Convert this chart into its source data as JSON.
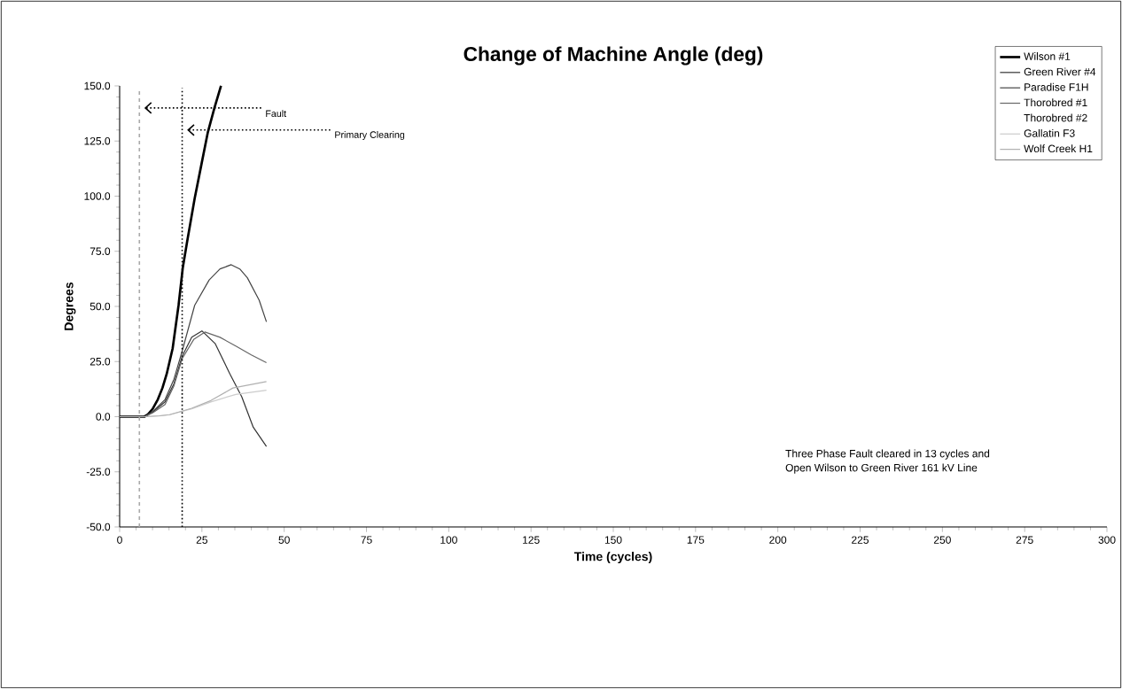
{
  "chart_data": {
    "type": "line",
    "title": "Change of Machine Angle (deg)",
    "xlabel": "Time (cycles)",
    "ylabel": "Degrees",
    "xlim": [
      0,
      300
    ],
    "ylim": [
      -50,
      150
    ],
    "xticks": [
      0,
      25,
      50,
      75,
      100,
      125,
      150,
      175,
      200,
      225,
      250,
      275,
      300
    ],
    "yticks": [
      {
        "value": -50,
        "label": "-50.0"
      },
      {
        "value": -25,
        "label": "-25.0"
      },
      {
        "value": 0,
        "label": "0.0"
      },
      {
        "value": 25,
        "label": "25.0"
      },
      {
        "value": 50,
        "label": "50.0"
      },
      {
        "value": 75,
        "label": "75.0"
      },
      {
        "value": 100,
        "label": "100.0"
      },
      {
        "value": 125,
        "label": "125.0"
      },
      {
        "value": 150,
        "label": "150.0"
      }
    ],
    "grid": false,
    "legend": "top right",
    "marker": "none",
    "line_style": "solid",
    "series": [
      {
        "name": "Wilson #1",
        "color": "#000000",
        "x": [
          0,
          5,
          7.5,
          8.5,
          10,
          11.6,
          13,
          14.3,
          16.1,
          17.9,
          19.2,
          20.5,
          22.8,
          24.8,
          26.8,
          28.8,
          30.8
        ],
        "values": [
          0,
          0,
          0,
          0.9,
          3.5,
          7.8,
          13,
          19.4,
          30.9,
          50.5,
          67.7,
          79.3,
          99,
          114,
          129,
          140,
          150
        ]
      },
      {
        "name": "Green River #4",
        "color": "#333333",
        "x": [
          0,
          5,
          7.6,
          10,
          13.8,
          16.5,
          19,
          21.9,
          25,
          29,
          33.5,
          37.1,
          40.6,
          44.6
        ],
        "values": [
          0,
          0,
          0,
          2,
          6.7,
          15,
          27.4,
          36,
          38.9,
          33.2,
          19.4,
          9,
          -4.8,
          -13.5
        ]
      },
      {
        "name": "Paradise F1H",
        "color": "#444444",
        "x": [
          0,
          5,
          7.6,
          10,
          13.8,
          16.5,
          19,
          22.8,
          27.2,
          30.5,
          33.9,
          36.5,
          38.8,
          42.4,
          44.6
        ],
        "values": [
          0,
          0,
          0,
          2.2,
          7.8,
          17,
          29.7,
          50.5,
          62,
          67,
          68.9,
          67,
          63,
          52.8,
          43
        ]
      },
      {
        "name": "Thorobred #1",
        "color": "#666666",
        "x": [
          0,
          5,
          7.6,
          10,
          13.8,
          16.5,
          19,
          22.5,
          25.9,
          30.5,
          35.3,
          40,
          44.6
        ],
        "values": [
          0,
          0,
          0,
          1.7,
          5.5,
          14,
          26.3,
          35,
          38.4,
          36,
          32,
          28,
          24.5
        ]
      },
      {
        "name": "Thorobred #2"
      },
      {
        "name": "Gallatin F3",
        "color": "#cccccc",
        "x": [
          0,
          5,
          7.6,
          12,
          15.2,
          21.9,
          27.7,
          35.3,
          44.6
        ],
        "values": [
          0,
          0,
          0,
          0.3,
          0.9,
          3.5,
          6.7,
          10.1,
          12
        ]
      },
      {
        "name": "Wolf Creek H1",
        "color": "#b0b0b0",
        "x": [
          0,
          5,
          7.6,
          12,
          15.2,
          21.9,
          27.7,
          34.4,
          44.6
        ],
        "values": [
          0,
          0,
          0,
          0.4,
          0.9,
          3.8,
          7.3,
          13,
          15.9
        ]
      }
    ],
    "ref_lines": [
      {
        "axis": "x",
        "value": 6,
        "label": "Fault",
        "color": "#aaaaaa",
        "line_style": "dashed"
      },
      {
        "axis": "x",
        "value": 19,
        "label": "Primary Clearing",
        "color": "#000000",
        "line_style": "dotted"
      }
    ],
    "annotations": [
      "Three Phase Fault cleared in  13 cycles and",
      "Open Wilson to Green River 161 kV Line"
    ]
  }
}
